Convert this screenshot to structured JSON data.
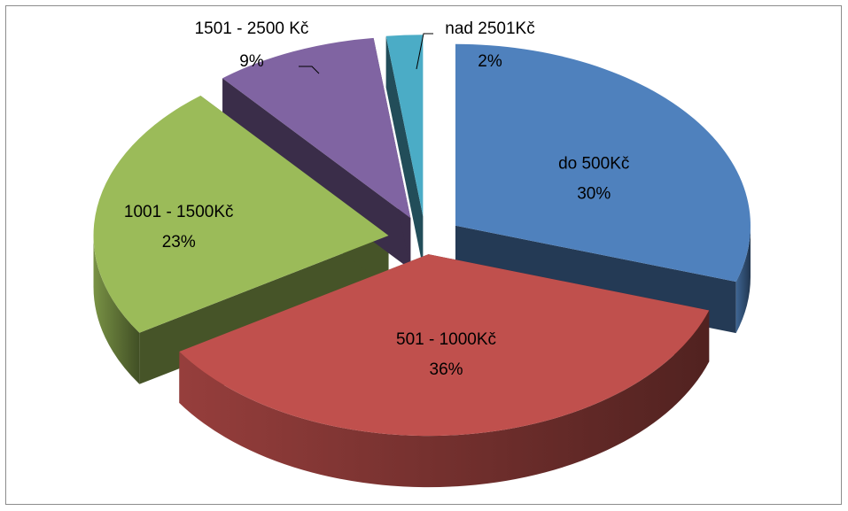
{
  "chart_data": {
    "type": "pie",
    "title": "",
    "style": "3d-exploded",
    "slices": [
      {
        "label": "do 500Kč",
        "value": 30,
        "value_label": "30%",
        "color": "#4f81bd"
      },
      {
        "label": "501 - 1000Kč",
        "value": 36,
        "value_label": "36%",
        "color": "#c0504d"
      },
      {
        "label": "1001 - 1500Kč",
        "value": 23,
        "value_label": "23%",
        "color": "#9bbb59"
      },
      {
        "label": "1501 - 2500 Kč",
        "value": 9,
        "value_label": "9%",
        "color": "#8064a2"
      },
      {
        "label": "nad 2501Kč",
        "value": 2,
        "value_label": "2%",
        "color": "#4bacc6"
      }
    ]
  }
}
